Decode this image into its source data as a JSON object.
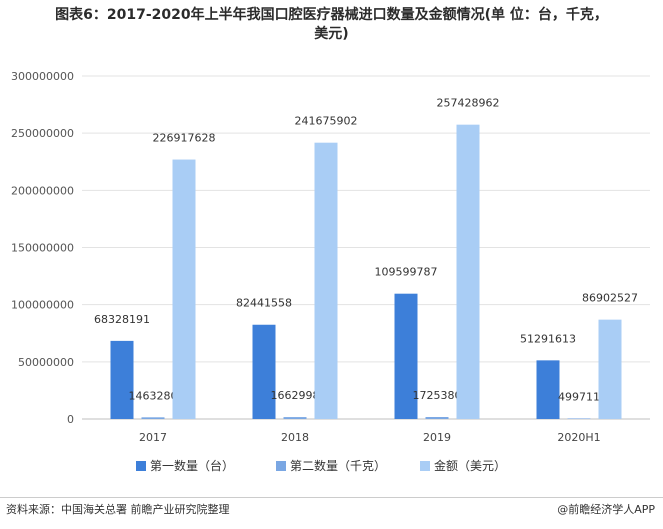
{
  "title_line1": "图表6：2017-2020年上半年我国口腔医疗器械进口数量及金额情况(单 位：台，千克，",
  "title_line2": "美元)",
  "source": "资料来源：中国海关总署 前瞻产业研究院整理",
  "brand": "@前瞻经济学人APP",
  "colors": {
    "series1": "#3d7fd9",
    "series2": "#7aa7e3",
    "series3": "#a9cdf5"
  },
  "chart_data": {
    "type": "bar",
    "categories": [
      "2017",
      "2018",
      "2019",
      "2020H1"
    ],
    "series": [
      {
        "name": "第一数量（台）",
        "values": [
          68328191,
          82441558,
          109599787,
          51291613
        ]
      },
      {
        "name": "第二数量（千克）",
        "values": [
          1463280,
          1662998,
          1725380,
          499711
        ]
      },
      {
        "name": "金额（美元）",
        "values": [
          226917628,
          241675902,
          257428962,
          86902527
        ]
      }
    ],
    "ylim": [
      0,
      300000000
    ],
    "yticks": [
      "0",
      "50000000",
      "100000000",
      "150000000",
      "200000000",
      "250000000",
      "300000000"
    ],
    "grid": true,
    "legend": "bottom"
  }
}
